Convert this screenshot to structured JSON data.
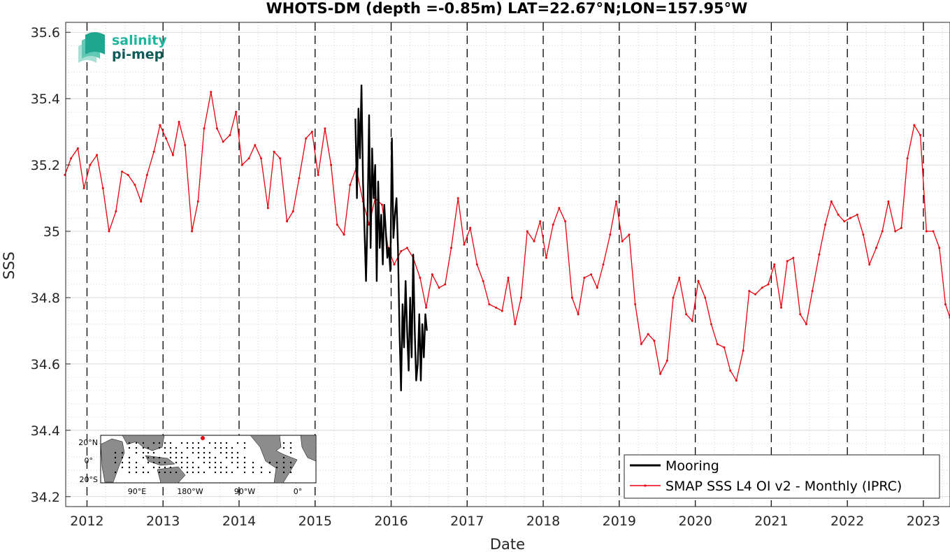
{
  "chart_data": {
    "type": "line",
    "title": "WHOTS-DM (depth =-0.85m) LAT=22.67°N;LON=157.95°W",
    "xlabel": "Date",
    "ylabel": "SSS",
    "xlim": [
      2011.72,
      2023.35
    ],
    "ylim": [
      34.17,
      35.63
    ],
    "x_ticks": [
      2012,
      2013,
      2014,
      2015,
      2016,
      2017,
      2018,
      2019,
      2020,
      2021,
      2022,
      2023
    ],
    "y_ticks": [
      34.2,
      34.4,
      34.6,
      34.8,
      35,
      35.2,
      35.4,
      35.6
    ],
    "x_tick_labels": [
      "2012",
      "2013",
      "2014",
      "2015",
      "2016",
      "2017",
      "2018",
      "2019",
      "2020",
      "2021",
      "2022",
      "2023"
    ],
    "y_tick_labels": [
      "34.2",
      "34.4",
      "34.6",
      "34.8",
      "35",
      "35.2",
      "35.4",
      "35.6"
    ],
    "year_boundaries": [
      2012,
      2013,
      2014,
      2015,
      2016,
      2017,
      2018,
      2019,
      2020,
      2021,
      2022,
      2023
    ],
    "grid": true,
    "legend_position": "bottom-right",
    "series": [
      {
        "name": "Mooring",
        "color": "#000000",
        "x": [
          2015.53,
          2015.55,
          2015.57,
          2015.59,
          2015.61,
          2015.63,
          2015.65,
          2015.67,
          2015.69,
          2015.71,
          2015.73,
          2015.75,
          2015.77,
          2015.79,
          2015.81,
          2015.83,
          2015.85,
          2015.87,
          2015.89,
          2015.91,
          2015.93,
          2015.95,
          2015.97,
          2015.99,
          2016.01,
          2016.03,
          2016.05,
          2016.07,
          2016.09,
          2016.11,
          2016.13,
          2016.15,
          2016.17,
          2016.19,
          2016.21,
          2016.23,
          2016.25,
          2016.27,
          2016.29,
          2016.31,
          2016.33,
          2016.35,
          2016.37,
          2016.39,
          2016.41,
          2016.43,
          2016.45,
          2016.47
        ],
        "y": [
          35.34,
          35.1,
          35.37,
          35.22,
          35.44,
          35.15,
          35.0,
          34.85,
          35.05,
          35.35,
          34.95,
          35.25,
          35.1,
          35.2,
          34.85,
          35.15,
          34.95,
          35.05,
          34.9,
          35.08,
          35.0,
          34.92,
          34.95,
          34.88,
          35.28,
          34.98,
          35.05,
          35.1,
          34.95,
          34.7,
          34.52,
          34.78,
          34.65,
          34.85,
          34.7,
          34.58,
          34.8,
          34.62,
          34.93,
          34.7,
          34.55,
          34.6,
          34.75,
          34.55,
          34.72,
          34.62,
          34.75,
          34.7
        ]
      },
      {
        "name": "SMAP SSS L4 OI v2 - Monthly (IPRC)",
        "color": "#e8000b",
        "x": [
          2011.71,
          2011.79,
          2011.88,
          2011.96,
          2012.04,
          2012.13,
          2012.21,
          2012.29,
          2012.38,
          2012.46,
          2012.54,
          2012.63,
          2012.71,
          2012.79,
          2012.88,
          2012.96,
          2013.04,
          2013.13,
          2013.21,
          2013.29,
          2013.38,
          2013.46,
          2013.54,
          2013.63,
          2013.71,
          2013.79,
          2013.88,
          2013.96,
          2014.04,
          2014.13,
          2014.21,
          2014.29,
          2014.38,
          2014.46,
          2014.54,
          2014.63,
          2014.71,
          2014.79,
          2014.88,
          2014.96,
          2015.04,
          2015.13,
          2015.21,
          2015.29,
          2015.38,
          2015.46,
          2015.54,
          2015.63,
          2015.71,
          2015.79,
          2015.88,
          2015.96,
          2016.04,
          2016.13,
          2016.21,
          2016.29,
          2016.38,
          2016.46,
          2016.54,
          2016.63,
          2016.71,
          2016.79,
          2016.88,
          2016.96,
          2017.04,
          2017.13,
          2017.21,
          2017.29,
          2017.38,
          2017.46,
          2017.54,
          2017.63,
          2017.71,
          2017.79,
          2017.88,
          2017.96,
          2018.04,
          2018.13,
          2018.21,
          2018.29,
          2018.38,
          2018.46,
          2018.54,
          2018.63,
          2018.71,
          2018.79,
          2018.88,
          2018.96,
          2019.04,
          2019.13,
          2019.21,
          2019.29,
          2019.38,
          2019.46,
          2019.54,
          2019.63,
          2019.71,
          2019.79,
          2019.88,
          2019.96,
          2020.04,
          2020.13,
          2020.21,
          2020.29,
          2020.38,
          2020.46,
          2020.54,
          2020.63,
          2020.71,
          2020.79,
          2020.88,
          2020.96,
          2021.04,
          2021.13,
          2021.21,
          2021.29,
          2021.38,
          2021.46,
          2021.54,
          2021.63,
          2021.71,
          2021.79,
          2021.88,
          2021.96,
          2022.04,
          2022.13,
          2022.21,
          2022.29,
          2022.38,
          2022.46,
          2022.54,
          2022.63,
          2022.71,
          2022.79,
          2022.88,
          2022.96,
          2023.04,
          2023.13,
          2023.21,
          2023.29,
          2023.35
        ],
        "y": [
          35.17,
          35.22,
          35.25,
          35.13,
          35.2,
          35.23,
          35.13,
          35.0,
          35.06,
          35.18,
          35.17,
          35.14,
          35.09,
          35.17,
          35.24,
          35.32,
          35.28,
          35.23,
          35.33,
          35.26,
          35.0,
          35.09,
          35.31,
          35.42,
          35.31,
          35.27,
          35.29,
          35.36,
          35.2,
          35.22,
          35.26,
          35.22,
          35.07,
          35.24,
          35.22,
          35.03,
          35.06,
          35.16,
          35.28,
          35.3,
          35.17,
          35.31,
          35.2,
          35.02,
          34.99,
          35.14,
          35.19,
          35.09,
          35.02,
          35.1,
          35.08,
          34.95,
          34.9,
          34.94,
          34.95,
          34.92,
          34.86,
          34.77,
          34.87,
          34.83,
          34.84,
          34.95,
          35.1,
          34.96,
          35.01,
          34.9,
          34.85,
          34.78,
          34.77,
          34.76,
          34.86,
          34.72,
          34.8,
          35.0,
          34.97,
          35.03,
          34.92,
          35.02,
          35.07,
          35.03,
          34.8,
          34.75,
          34.86,
          34.87,
          34.83,
          34.9,
          34.99,
          35.09,
          34.97,
          34.99,
          34.78,
          34.66,
          34.69,
          34.67,
          34.57,
          34.61,
          34.8,
          34.86,
          34.75,
          34.73,
          34.85,
          34.8,
          34.72,
          34.66,
          34.65,
          34.58,
          34.55,
          34.64,
          34.82,
          34.81,
          34.83,
          34.84,
          34.9,
          34.77,
          34.91,
          34.92,
          34.75,
          34.72,
          34.82,
          34.93,
          35.02,
          35.09,
          35.05,
          35.03,
          35.04,
          35.05,
          34.99,
          34.9,
          34.95,
          35.0,
          35.09,
          35.0,
          35.01,
          35.22,
          35.32,
          35.29,
          35.0,
          35.0,
          34.95,
          34.78,
          34.74
        ]
      }
    ]
  },
  "inset_map": {
    "lat_labels": [
      "20°N",
      "0°",
      "20°S"
    ],
    "lon_labels": [
      "90°E",
      "180°W",
      "90°W",
      "0°"
    ]
  },
  "logo": {
    "line1": "salinity",
    "line2": "pi-mep"
  },
  "colors": {
    "mooring": "#000000",
    "smap": "#e8000b",
    "grid": "#d9d9d9",
    "land": "#8c8c8c",
    "logo_teal": "#1fb59b"
  }
}
